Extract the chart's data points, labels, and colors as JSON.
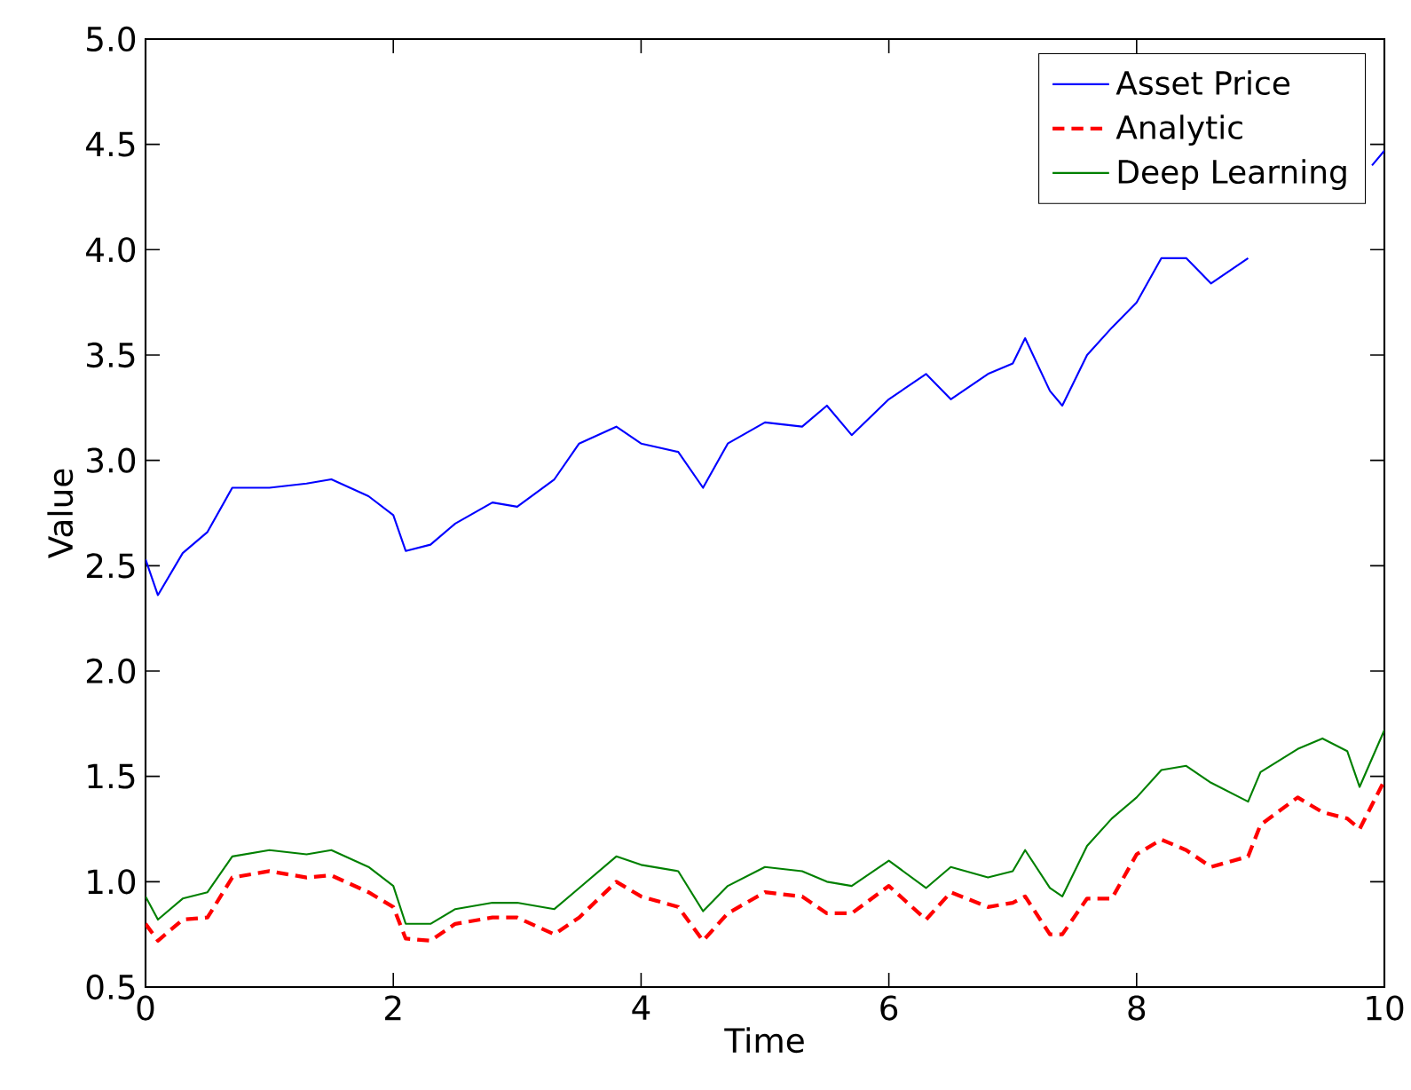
{
  "chart_data": {
    "type": "line",
    "xlabel": "Time",
    "ylabel": "Value",
    "xlim": [
      0,
      10
    ],
    "ylim": [
      0.5,
      5.0
    ],
    "xticks": [
      0,
      2,
      4,
      6,
      8,
      10
    ],
    "yticks": [
      {
        "value": 0.5,
        "label": "0.5"
      },
      {
        "value": 1.0,
        "label": "1.0"
      },
      {
        "value": 1.5,
        "label": "1.5"
      },
      {
        "value": 2.0,
        "label": "2.0"
      },
      {
        "value": 2.5,
        "label": "2.5"
      },
      {
        "value": 3.0,
        "label": "3.0"
      },
      {
        "value": 3.5,
        "label": "3.5"
      },
      {
        "value": 4.0,
        "label": "4.0"
      },
      {
        "value": 4.5,
        "label": "4.5"
      },
      {
        "value": 5.0,
        "label": "5.0"
      }
    ],
    "legend": "top right",
    "x": [
      0,
      0.1,
      0.3,
      0.5,
      0.7,
      1.0,
      1.3,
      1.5,
      1.8,
      2.0,
      2.1,
      2.3,
      2.5,
      2.8,
      3.0,
      3.3,
      3.5,
      3.8,
      4.0,
      4.3,
      4.5,
      4.7,
      5.0,
      5.3,
      5.5,
      5.7,
      6.0,
      6.3,
      6.5,
      6.8,
      7.0,
      7.1,
      7.3,
      7.4,
      7.6,
      7.8,
      8.0,
      8.2,
      8.4,
      8.6,
      8.9,
      9.0,
      9.3,
      9.5,
      9.7,
      9.8,
      10
    ],
    "series": [
      {
        "name": "Asset Price",
        "color": "#0000ff",
        "line_style": "solid",
        "x": [
          0,
          0.1,
          0.3,
          0.5,
          0.7,
          1.0,
          1.3,
          1.5,
          1.8,
          2.0,
          2.1,
          2.3,
          2.5,
          2.8,
          3.0,
          3.3,
          3.5,
          3.8,
          4.0,
          4.3,
          4.5,
          4.7,
          5.0,
          5.3,
          5.5,
          5.7,
          6.0,
          6.3,
          6.5,
          6.8,
          7.0,
          7.1,
          7.3,
          7.4,
          7.6,
          7.8,
          8.0,
          8.2,
          8.4,
          8.6,
          8.9,
          9.0,
          9.3,
          9.5,
          9.7,
          9.9,
          10
        ],
        "values": [
          2.53,
          2.36,
          2.56,
          2.66,
          2.87,
          2.87,
          2.89,
          2.91,
          2.83,
          2.74,
          2.57,
          2.6,
          2.7,
          2.8,
          2.78,
          2.91,
          3.08,
          3.16,
          3.08,
          3.04,
          2.87,
          3.08,
          3.18,
          3.16,
          3.26,
          3.12,
          3.29,
          3.41,
          3.29,
          3.41,
          3.46,
          3.58,
          3.33,
          3.26,
          3.5,
          3.63,
          3.75,
          3.96,
          3.96,
          3.84,
          3.96,
          null,
          null,
          null,
          null,
          4.4,
          4.47
        ]
      },
      {
        "name": "Analytic",
        "color": "#ff0000",
        "line_style": "dashed",
        "values": [
          0.8,
          0.72,
          0.82,
          0.83,
          1.02,
          1.05,
          1.02,
          1.03,
          0.95,
          0.88,
          0.73,
          0.72,
          0.8,
          0.83,
          0.83,
          0.75,
          0.83,
          1.0,
          0.93,
          0.88,
          0.72,
          0.85,
          0.95,
          0.93,
          0.85,
          0.85,
          0.98,
          0.82,
          0.95,
          0.88,
          0.9,
          0.93,
          0.75,
          0.75,
          0.92,
          0.92,
          1.13,
          1.2,
          1.15,
          1.07,
          1.12,
          1.27,
          1.4,
          1.33,
          1.3,
          1.25,
          1.48
        ]
      },
      {
        "name": "Deep Learning",
        "color": "#008000",
        "line_style": "solid",
        "values": [
          0.93,
          0.82,
          0.92,
          0.95,
          1.12,
          1.15,
          1.13,
          1.15,
          1.07,
          0.98,
          0.8,
          0.8,
          0.87,
          0.9,
          0.9,
          0.87,
          0.97,
          1.12,
          1.08,
          1.05,
          0.86,
          0.98,
          1.07,
          1.05,
          1.0,
          0.98,
          1.1,
          0.97,
          1.07,
          1.02,
          1.05,
          1.15,
          0.97,
          0.93,
          1.17,
          1.3,
          1.4,
          1.53,
          1.55,
          1.47,
          1.38,
          1.52,
          1.63,
          1.68,
          1.62,
          1.45,
          1.72
        ]
      }
    ]
  }
}
